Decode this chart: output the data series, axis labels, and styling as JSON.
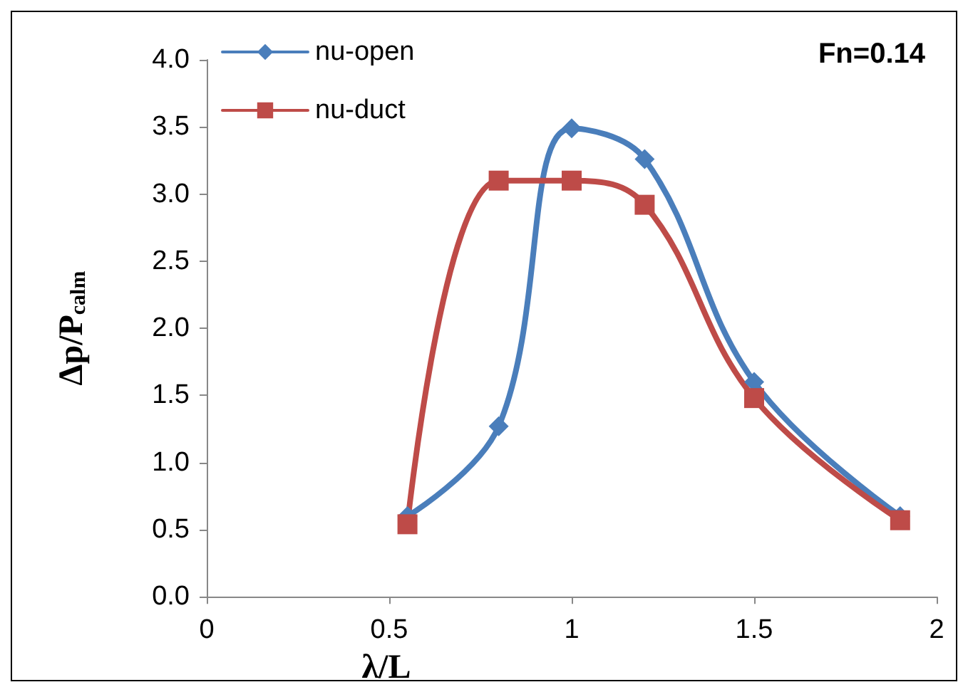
{
  "chart_data": {
    "type": "line",
    "xlabel": "λ/L",
    "ylabel": "Δp/P$_{calm}$",
    "annotations": [
      "Fn=0.14"
    ],
    "x": [
      0.55,
      0.8,
      1.0,
      1.2,
      1.5,
      1.9
    ],
    "series": [
      {
        "name": "nu-open",
        "color": "#4a7ebb",
        "marker": "diamond",
        "values": [
          0.6,
          1.27,
          3.49,
          3.26,
          1.6,
          0.6
        ]
      },
      {
        "name": "nu-duct",
        "color": "#be4b48",
        "marker": "square",
        "values": [
          0.54,
          3.1,
          3.1,
          2.92,
          1.48,
          0.57
        ]
      }
    ],
    "xlim": [
      0,
      2
    ],
    "xticks": [
      0,
      0.5,
      1,
      1.5,
      2
    ],
    "ylim": [
      0,
      4
    ],
    "yticks": [
      {
        "value": 0,
        "label": "0.0"
      },
      0.5,
      {
        "value": 1,
        "label": "1.0"
      },
      1.5,
      {
        "value": 2,
        "label": "2.0"
      },
      2.5,
      {
        "value": 3,
        "label": "3.0"
      },
      3.5,
      {
        "value": 4,
        "label": "4.0"
      }
    ],
    "grid": false,
    "legend": "top left",
    "line_style": "solid"
  }
}
